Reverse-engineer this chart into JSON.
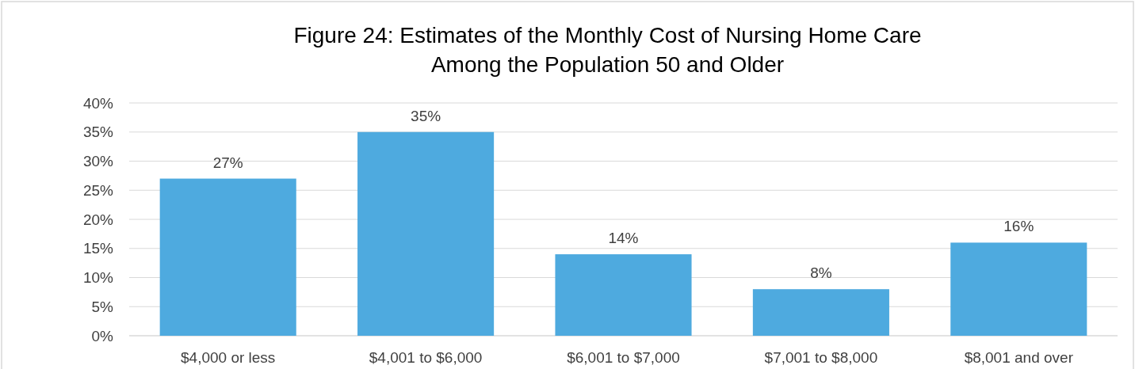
{
  "chart_data": {
    "type": "bar",
    "title": "Figure 24: Estimates of the Monthly Cost of Nursing Home Care Among the Population 50 and Older",
    "categories": [
      "$4,000 or less",
      "$4,001 to $6,000",
      "$6,001 to $7,000",
      "$7,001 to $8,000",
      "$8,001 and over"
    ],
    "values": [
      27,
      35,
      14,
      8,
      16
    ],
    "value_labels": [
      "27%",
      "35%",
      "14%",
      "8%",
      "16%"
    ],
    "color": "#4eaadf",
    "ylim": [
      0,
      40
    ],
    "yticks": [
      {
        "value": 0,
        "label": "0%"
      },
      {
        "value": 5,
        "label": "5%"
      },
      {
        "value": 10,
        "label": "10%"
      },
      {
        "value": 15,
        "label": "15%"
      },
      {
        "value": 20,
        "label": "20%"
      },
      {
        "value": 25,
        "label": "25%"
      },
      {
        "value": 30,
        "label": "30%"
      },
      {
        "value": 35,
        "label": "35%"
      },
      {
        "value": 40,
        "label": "40%"
      }
    ],
    "grid": "y"
  }
}
